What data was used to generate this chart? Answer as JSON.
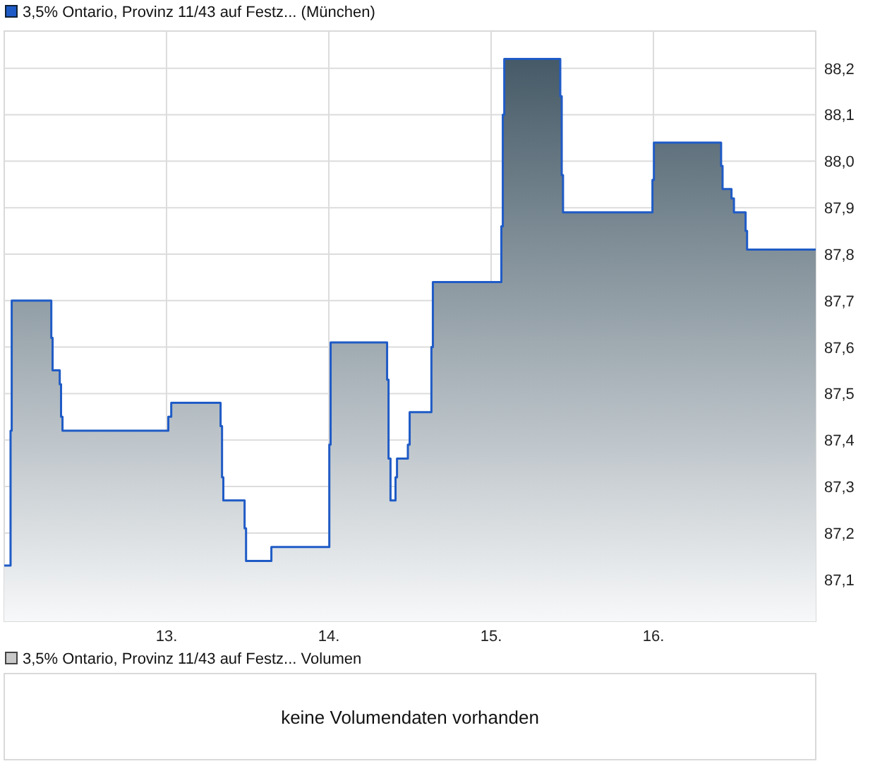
{
  "chart_data": [
    {
      "type": "area",
      "legend": "top left",
      "grid": true,
      "marker": "none",
      "line_style": "solid",
      "xlim": [
        12,
        17
      ],
      "xticks": [
        {
          "value": 13,
          "label": "13."
        },
        {
          "value": 14,
          "label": "14."
        },
        {
          "value": 15,
          "label": "15."
        },
        {
          "value": 16,
          "label": "16."
        }
      ],
      "ylim": [
        87.01,
        88.28
      ],
      "yticks": [
        {
          "value": 87.1,
          "label": "87,1"
        },
        {
          "value": 87.2,
          "label": "87,2"
        },
        {
          "value": 87.3,
          "label": "87,3"
        },
        {
          "value": 87.4,
          "label": "87,4"
        },
        {
          "value": 87.5,
          "label": "87,5"
        },
        {
          "value": 87.6,
          "label": "87,6"
        },
        {
          "value": 87.7,
          "label": "87,7"
        },
        {
          "value": 87.8,
          "label": "87,8"
        },
        {
          "value": 87.9,
          "label": "87,9"
        },
        {
          "value": 88.0,
          "label": "88,0"
        },
        {
          "value": 88.1,
          "label": "88,1"
        },
        {
          "value": 88.2,
          "label": "88,2"
        }
      ],
      "series": [
        {
          "name": "3,5% Ontario, Provinz 11/43 auf Festz... (München)",
          "color": "#1f5bc6",
          "x": [
            12.0,
            12.039,
            12.039,
            12.046,
            12.046,
            12.29,
            12.29,
            12.298,
            12.298,
            12.342,
            12.342,
            12.35,
            12.35,
            12.359,
            12.359,
            13.011,
            13.011,
            13.029,
            13.029,
            13.333,
            13.333,
            13.342,
            13.342,
            13.35,
            13.35,
            13.481,
            13.481,
            13.49,
            13.49,
            13.646,
            13.646,
            14.003,
            14.003,
            14.011,
            14.011,
            14.359,
            14.359,
            14.368,
            14.368,
            14.38,
            14.38,
            14.411,
            14.411,
            14.42,
            14.42,
            14.487,
            14.487,
            14.498,
            14.498,
            14.632,
            14.632,
            14.641,
            14.641,
            15.063,
            15.063,
            15.072,
            15.072,
            15.081,
            15.081,
            15.426,
            15.426,
            15.435,
            15.435,
            15.443,
            15.443,
            15.994,
            15.994,
            16.003,
            16.003,
            16.417,
            16.417,
            16.426,
            16.426,
            16.481,
            16.481,
            16.496,
            16.496,
            16.568,
            16.568,
            16.577,
            16.577,
            17.0
          ],
          "values": [
            87.13,
            87.13,
            87.42,
            87.42,
            87.7,
            87.7,
            87.62,
            87.62,
            87.55,
            87.55,
            87.52,
            87.52,
            87.45,
            87.45,
            87.42,
            87.42,
            87.45,
            87.45,
            87.48,
            87.48,
            87.43,
            87.43,
            87.32,
            87.32,
            87.27,
            87.27,
            87.21,
            87.21,
            87.14,
            87.14,
            87.17,
            87.17,
            87.39,
            87.39,
            87.61,
            87.61,
            87.53,
            87.53,
            87.36,
            87.36,
            87.27,
            87.27,
            87.32,
            87.32,
            87.36,
            87.36,
            87.39,
            87.39,
            87.46,
            87.46,
            87.6,
            87.6,
            87.74,
            87.74,
            87.86,
            87.86,
            88.1,
            88.1,
            88.22,
            88.22,
            88.14,
            88.14,
            87.97,
            87.97,
            87.89,
            87.89,
            87.96,
            87.96,
            88.04,
            88.04,
            87.99,
            87.99,
            87.94,
            87.94,
            87.92,
            87.92,
            87.89,
            87.89,
            87.85,
            87.85,
            87.81,
            87.81
          ]
        }
      ]
    },
    {
      "type": "other",
      "title": "3,5% Ontario, Provinz 11/43 auf Festz... Volumen",
      "annotations": [
        "keine Volumendaten vorhanden"
      ]
    }
  ]
}
